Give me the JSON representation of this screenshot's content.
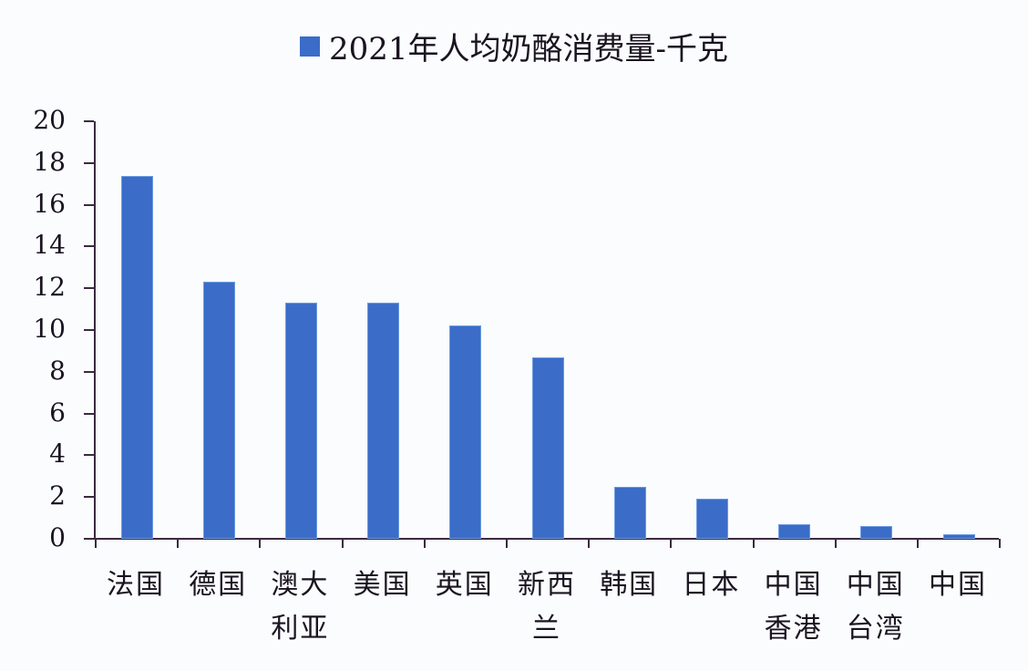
{
  "legend": {
    "label": "2021年人均奶酪消费量-千克",
    "color": "#3a6cc8"
  },
  "y_axis": {
    "ticks": [
      "20",
      "18",
      "16",
      "14",
      "12",
      "10",
      "8",
      "6",
      "4",
      "2",
      "0"
    ]
  },
  "x_axis": {
    "labels": [
      {
        "line1": "法国",
        "line2": ""
      },
      {
        "line1": "德国",
        "line2": ""
      },
      {
        "line1": "澳大",
        "line2": "利亚"
      },
      {
        "line1": "美国",
        "line2": ""
      },
      {
        "line1": "英国",
        "line2": ""
      },
      {
        "line1": "新西",
        "line2": "兰"
      },
      {
        "line1": "韩国",
        "line2": ""
      },
      {
        "line1": "日本",
        "line2": ""
      },
      {
        "line1": "中国",
        "line2": "香港"
      },
      {
        "line1": "中国",
        "line2": "台湾"
      },
      {
        "line1": "中国",
        "line2": ""
      }
    ]
  },
  "chart_data": {
    "type": "bar",
    "title": "",
    "categories": [
      "法国",
      "德国",
      "澳大利亚",
      "美国",
      "英国",
      "新西兰",
      "韩国",
      "日本",
      "中国香港",
      "中国台湾",
      "中国"
    ],
    "series": [
      {
        "name": "2021年人均奶酪消费量-千克",
        "color": "#3a6cc8",
        "values": [
          17.4,
          12.3,
          11.3,
          11.3,
          10.2,
          8.7,
          2.5,
          1.9,
          0.7,
          0.6,
          0.2
        ]
      }
    ],
    "xlabel": "",
    "ylabel": "",
    "ylim": [
      0,
      20
    ],
    "yticks": [
      0,
      2,
      4,
      6,
      8,
      10,
      12,
      14,
      16,
      18,
      20
    ],
    "grid": false,
    "legend_position": "top"
  }
}
